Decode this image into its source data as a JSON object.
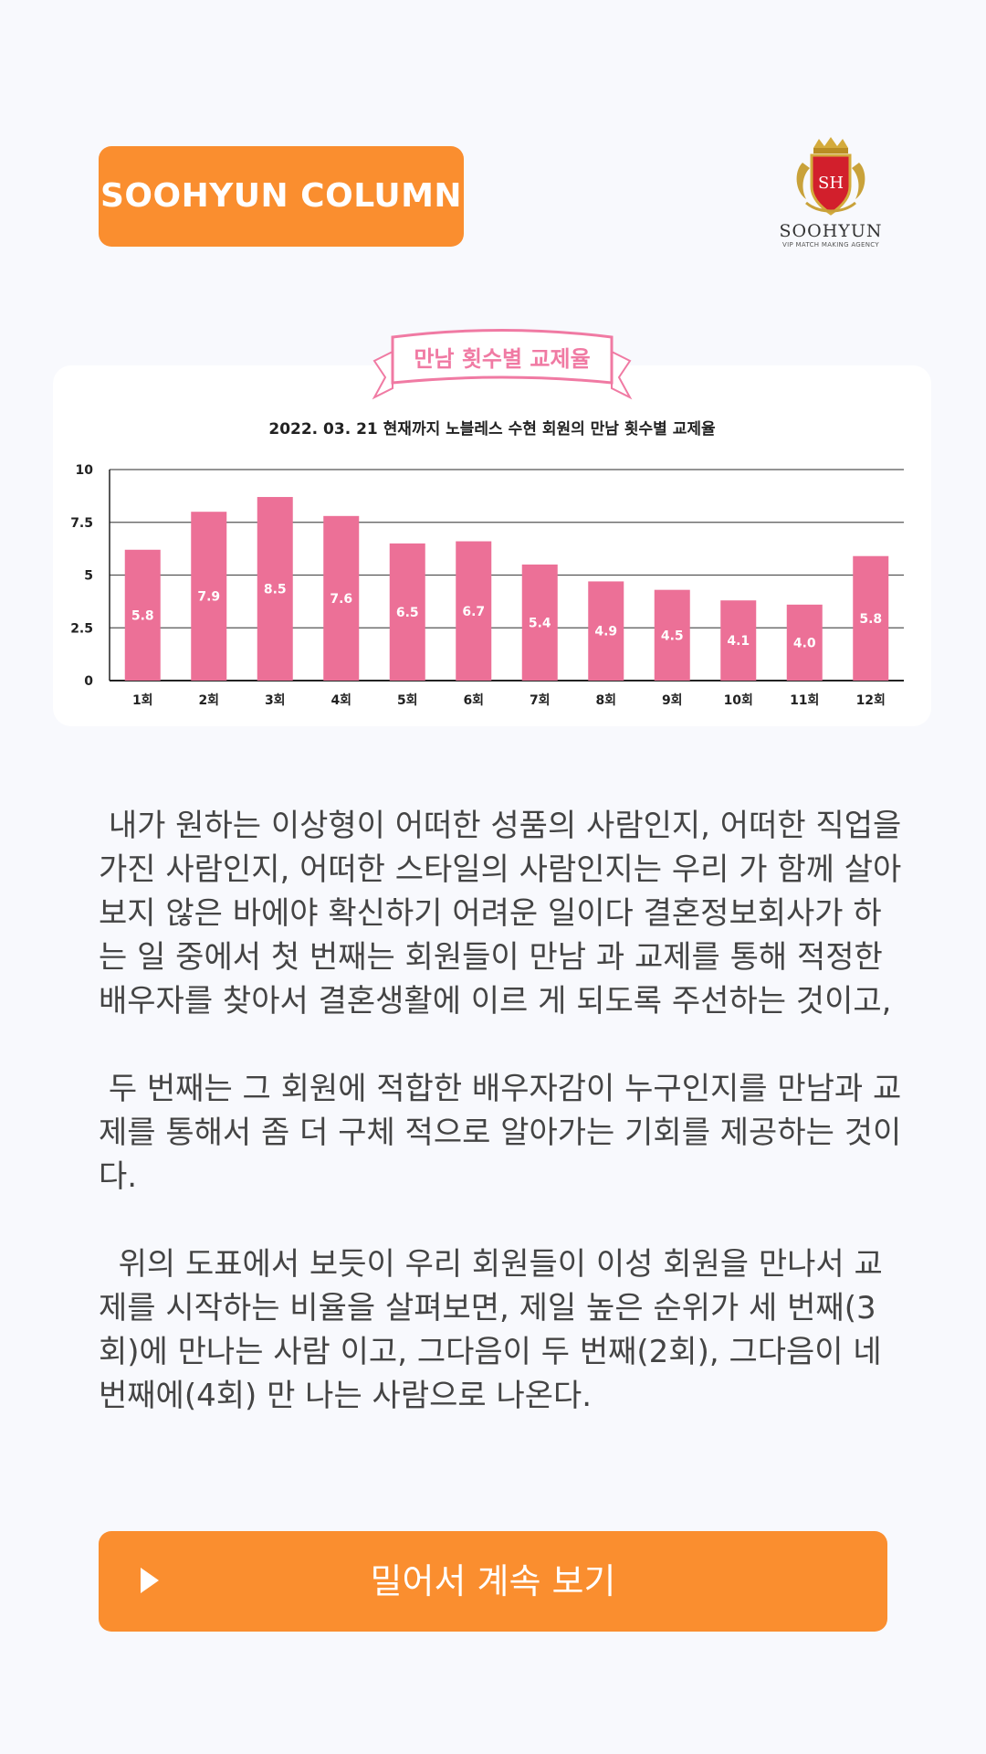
{
  "header": {
    "badge_label": "SOOHYUN COLUMN"
  },
  "logo": {
    "emblem": "SH",
    "name": "SOOHYUN",
    "tagline": "VIP MATCH MAKING AGENCY"
  },
  "colors": {
    "accent": "#fa8e2f",
    "bar": "#ec7097",
    "ribbon": "#f07aa3"
  },
  "chart_data": {
    "type": "bar",
    "title": "만남 횟수별 교제율",
    "subtitle": "2022. 03. 21 현재까지 노블레스 수현 회원의 만남 횟수별 교제율",
    "categories": [
      "1회",
      "2회",
      "3회",
      "4회",
      "5회",
      "6회",
      "7회",
      "8회",
      "9회",
      "10회",
      "11회",
      "12회"
    ],
    "values": [
      5.8,
      7.9,
      8.5,
      7.6,
      6.5,
      6.7,
      5.4,
      4.9,
      4.5,
      4.1,
      4.0,
      5.8
    ],
    "bar_heights": [
      6.2,
      8.0,
      8.7,
      7.8,
      6.5,
      6.6,
      5.5,
      4.7,
      4.3,
      3.8,
      3.6,
      5.9
    ],
    "ylim": [
      0,
      10
    ],
    "yticks": [
      "0",
      "2.5",
      "5",
      "7.5",
      "10"
    ],
    "grid": true,
    "legend": "none"
  },
  "article": {
    "paragraph_1": " 내가 원하는 이상형이 어떠한 성품의 사람인지, 어떠한 직업을 가진 사람인지, 어떠한 스타일의 사람인지는 우리 가 함께 살아보지 않은 바에야 확신하기 어려운 일이다 결혼정보회사가 하는 일 중에서 첫 번째는 회원들이 만남 과 교제를 통해 적정한 배우자를 찾아서 결혼생활에 이르 게 되도록 주선하는 것이고,",
    "paragraph_2": " 두 번째는 그 회원에 적합한 배우자감이 누구인지를 만남과 교제를 통해서 좀 더 구체 적으로 알아가는 기회를 제공하는 것이다.",
    "paragraph_3": "  위의 도표에서 보듯이 우리 회원들이 이성 회원을 만나서 교제를 시작하는 비율을 살펴보면, 제일 높은 순위가 세 번째(3회)에 만나는 사람 이고, 그다음이 두 번째(2회), 그다음이 네 번째에(4회) 만 나는 사람으로 나온다."
  },
  "cta": {
    "label": "밀어서 계속 보기",
    "icon": "play-icon"
  }
}
